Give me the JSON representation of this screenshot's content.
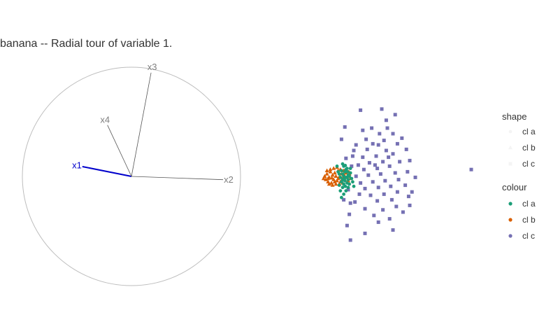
{
  "title": "banana -- Radial tour of variable 1.",
  "colors": {
    "circle": "#bdbdbd",
    "axis": "#555555",
    "axis_label": "#7f7f7f",
    "highlight": "#0000cc",
    "cl_a": "#1b9e77",
    "cl_b": "#d95f02",
    "cl_c": "#7570b3"
  },
  "chart_data": {
    "type": "scatter",
    "title": "banana -- Radial tour of variable 1.",
    "axes_display": {
      "axes": [
        {
          "name": "x1",
          "x": -0.45,
          "y": 0.09,
          "highlight": true
        },
        {
          "name": "x2",
          "x": 0.84,
          "y": -0.03,
          "highlight": false
        },
        {
          "name": "x3",
          "x": 0.18,
          "y": 0.95,
          "highlight": false
        },
        {
          "name": "x4",
          "x": -0.22,
          "y": 0.47,
          "highlight": false
        }
      ]
    },
    "legend": {
      "placement": "right",
      "shape": {
        "title": "shape",
        "entries": [
          "cl a",
          "cl b",
          "cl c"
        ]
      },
      "colour": {
        "title": "colour",
        "entries": [
          "cl a",
          "cl b",
          "cl c"
        ]
      }
    },
    "series": [
      {
        "name": "cl a",
        "marker": "circle",
        "points": [
          [
            0.0,
            0.65
          ],
          [
            0.05,
            0.55
          ],
          [
            -0.25,
            0.55
          ],
          [
            0.12,
            0.58
          ],
          [
            0.35,
            0.45
          ],
          [
            0.15,
            0.4
          ],
          [
            0.1,
            0.3
          ],
          [
            -0.05,
            0.35
          ],
          [
            0.22,
            0.3
          ],
          [
            0.0,
            0.2
          ],
          [
            -0.15,
            0.2
          ],
          [
            0.25,
            0.15
          ],
          [
            0.05,
            0.1
          ],
          [
            0.3,
            0.1
          ],
          [
            -0.1,
            0.05
          ],
          [
            0.18,
            0.05
          ],
          [
            0.0,
            -0.05
          ],
          [
            0.25,
            -0.05
          ],
          [
            0.1,
            -0.1
          ],
          [
            -0.05,
            -0.15
          ],
          [
            0.2,
            -0.2
          ],
          [
            0.05,
            -0.25
          ],
          [
            0.3,
            -0.25
          ],
          [
            -0.15,
            -0.3
          ],
          [
            0.12,
            -0.35
          ],
          [
            0.0,
            -0.4
          ],
          [
            0.25,
            -0.4
          ],
          [
            -0.1,
            -0.55
          ],
          [
            0.15,
            -0.55
          ],
          [
            0.05,
            -0.7
          ],
          [
            -0.05,
            -0.85
          ],
          [
            0.4,
            0.0
          ],
          [
            0.45,
            -0.15
          ],
          [
            0.5,
            -0.35
          ],
          [
            0.2,
            0.45
          ],
          [
            -0.2,
            0.3
          ],
          [
            0.35,
            0.25
          ],
          [
            0.08,
            0.0
          ]
        ]
      },
      {
        "name": "cl b",
        "marker": "triangle",
        "points": [
          [
            -0.8,
            0.1
          ],
          [
            -0.75,
            -0.05
          ],
          [
            -0.7,
            0.2
          ],
          [
            -0.65,
            -0.15
          ],
          [
            -0.6,
            0.05
          ],
          [
            -0.55,
            0.3
          ],
          [
            -0.5,
            -0.2
          ],
          [
            -0.45,
            0.15
          ],
          [
            -0.4,
            -0.05
          ],
          [
            -0.35,
            0.25
          ],
          [
            -0.3,
            0.1
          ],
          [
            -0.25,
            -0.1
          ],
          [
            -0.2,
            0.35
          ],
          [
            -0.15,
            0.05
          ],
          [
            -0.1,
            -0.15
          ],
          [
            -0.05,
            0.2
          ],
          [
            0.0,
            0.0
          ],
          [
            0.05,
            0.15
          ],
          [
            0.1,
            -0.05
          ],
          [
            0.15,
            0.25
          ],
          [
            0.2,
            0.05
          ],
          [
            0.25,
            -0.1
          ],
          [
            0.3,
            0.2
          ],
          [
            0.35,
            0.0
          ],
          [
            -0.6,
            -0.25
          ],
          [
            -0.45,
            -0.3
          ],
          [
            -0.3,
            -0.25
          ],
          [
            -0.15,
            -0.25
          ],
          [
            0.0,
            -0.2
          ],
          [
            -0.7,
            0.35
          ],
          [
            -0.55,
            0.4
          ],
          [
            -0.4,
            0.45
          ],
          [
            -0.25,
            0.5
          ],
          [
            -0.1,
            0.4
          ],
          [
            0.05,
            0.35
          ],
          [
            -0.85,
            0.0
          ],
          [
            -0.65,
            0.0
          ],
          [
            -0.35,
            -0.15
          ],
          [
            -0.2,
            0.0
          ],
          [
            0.1,
            0.1
          ],
          [
            0.28,
            0.3
          ],
          [
            -0.48,
            0.02
          ]
        ]
      },
      {
        "name": "cl c",
        "marker": "square",
        "points": [
          [
            0.8,
            3.05
          ],
          [
            1.75,
            3.1
          ],
          [
            2.35,
            2.85
          ],
          [
            1.95,
            2.6
          ],
          [
            0.1,
            2.3
          ],
          [
            1.3,
            2.25
          ],
          [
            2.0,
            2.25
          ],
          [
            0.9,
            2.15
          ],
          [
            1.65,
            2.0
          ],
          [
            2.25,
            2.0
          ],
          [
            2.65,
            1.8
          ],
          [
            -0.05,
            1.75
          ],
          [
            1.05,
            1.75
          ],
          [
            1.85,
            1.7
          ],
          [
            2.45,
            1.55
          ],
          [
            1.35,
            1.55
          ],
          [
            0.6,
            1.5
          ],
          [
            1.6,
            1.5
          ],
          [
            2.85,
            1.3
          ],
          [
            1.1,
            1.3
          ],
          [
            1.95,
            1.25
          ],
          [
            0.5,
            1.25
          ],
          [
            2.25,
            1.1
          ],
          [
            1.5,
            1.0
          ],
          [
            0.9,
            0.95
          ],
          [
            3.0,
            0.8
          ],
          [
            2.55,
            0.75
          ],
          [
            1.8,
            0.75
          ],
          [
            1.2,
            0.7
          ],
          [
            0.7,
            0.6
          ],
          [
            2.1,
            0.55
          ],
          [
            1.55,
            0.45
          ],
          [
            0.95,
            0.4
          ],
          [
            2.9,
            0.3
          ],
          [
            2.35,
            0.25
          ],
          [
            1.7,
            0.2
          ],
          [
            1.15,
            0.15
          ],
          [
            0.6,
            0.1
          ],
          [
            3.25,
            0.05
          ],
          [
            2.5,
            -0.05
          ],
          [
            1.9,
            -0.1
          ],
          [
            1.35,
            -0.15
          ],
          [
            0.8,
            -0.2
          ],
          [
            2.8,
            -0.3
          ],
          [
            2.15,
            -0.35
          ],
          [
            1.6,
            -0.4
          ],
          [
            1.0,
            -0.45
          ],
          [
            3.1,
            -0.6
          ],
          [
            2.45,
            -0.6
          ],
          [
            1.85,
            -0.7
          ],
          [
            1.25,
            -0.75
          ],
          [
            0.75,
            -0.7
          ],
          [
            2.95,
            -0.8
          ],
          [
            2.2,
            -0.95
          ],
          [
            1.55,
            -1.0
          ],
          [
            0.55,
            -1.05
          ],
          [
            3.0,
            -1.2
          ],
          [
            2.4,
            -1.25
          ],
          [
            1.0,
            -1.35
          ],
          [
            1.8,
            -1.4
          ],
          [
            2.7,
            -1.5
          ],
          [
            0.3,
            -1.6
          ],
          [
            1.4,
            -1.65
          ],
          [
            2.1,
            -1.8
          ],
          [
            1.6,
            -1.95
          ],
          [
            0.2,
            -2.1
          ],
          [
            2.25,
            -2.3
          ],
          [
            1.0,
            -2.45
          ],
          [
            0.35,
            -2.75
          ],
          [
            0.15,
            0.9
          ],
          [
            0.05,
            -0.95
          ],
          [
            0.4,
            0.55
          ],
          [
            0.25,
            -0.5
          ],
          [
            0.45,
            1.0
          ],
          [
            0.35,
            -1.1
          ],
          [
            5.75,
            0.4
          ],
          [
            2.05,
            0.95
          ],
          [
            1.45,
            0.6
          ]
        ]
      }
    ]
  }
}
